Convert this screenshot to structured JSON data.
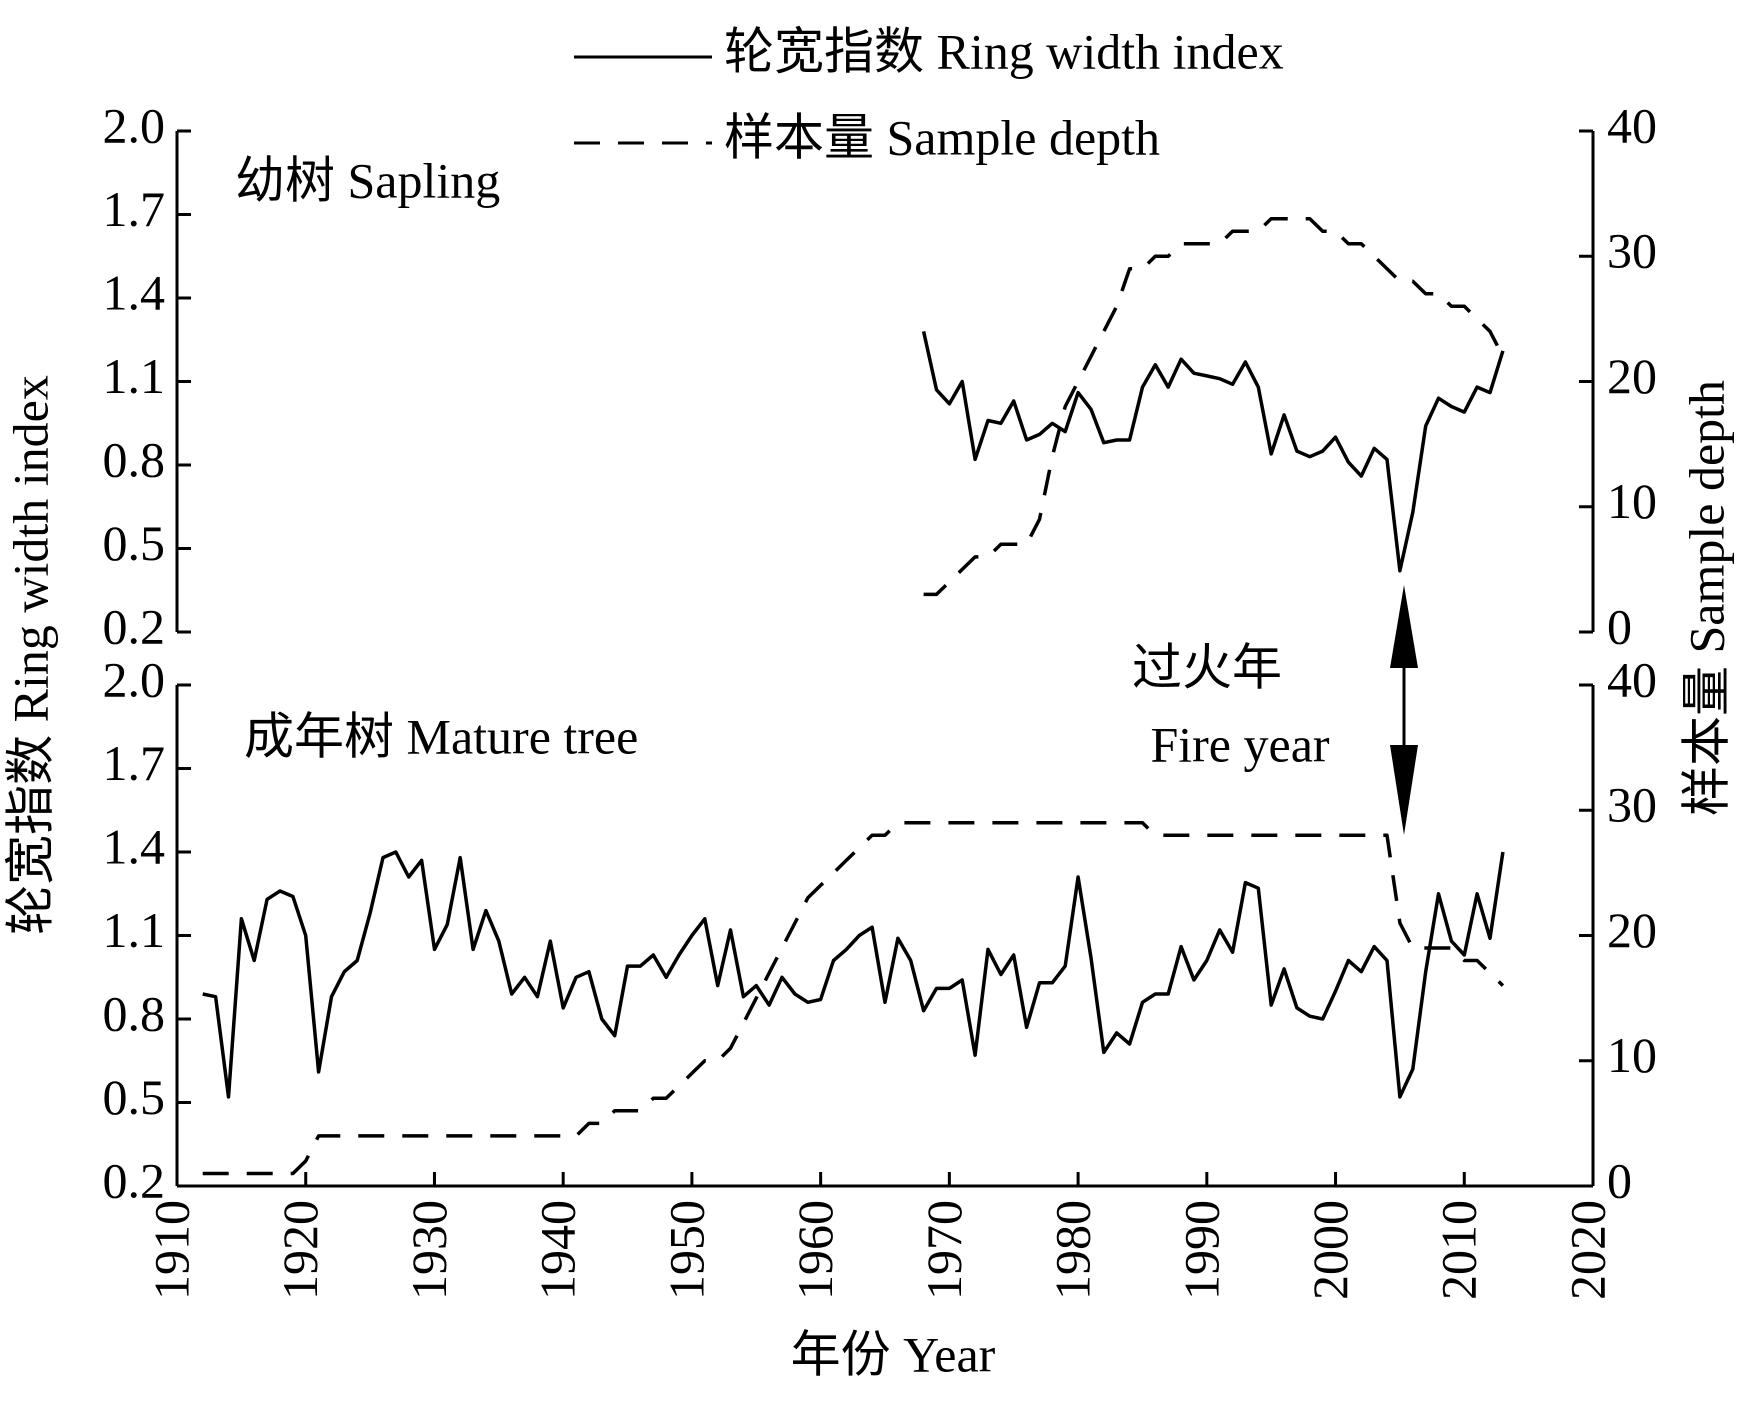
{
  "chart_data": [
    {
      "type": "line",
      "annotation": "幼树 Sapling",
      "ylabel": "轮宽指数 Ring width index",
      "y2label": "样本量 Sample depth",
      "x": [
        1968,
        1969,
        1970,
        1971,
        1972,
        1973,
        1974,
        1975,
        1976,
        1977,
        1978,
        1979,
        1980,
        1981,
        1982,
        1983,
        1984,
        1985,
        1986,
        1987,
        1988,
        1989,
        1990,
        1991,
        1992,
        1993,
        1994,
        1995,
        1996,
        1997,
        1998,
        1999,
        2000,
        2001,
        2002,
        2003,
        2004,
        2005,
        2006,
        2007,
        2008,
        2009,
        2010,
        2011,
        2012,
        2013
      ],
      "series": [
        {
          "name": "轮宽指数 Ring width index",
          "color": "#000000",
          "linestyle": "solid",
          "values": [
            1.28,
            1.07,
            1.02,
            1.1,
            0.82,
            0.96,
            0.95,
            1.03,
            0.89,
            0.91,
            0.95,
            0.92,
            1.06,
            1.0,
            0.88,
            0.89,
            0.89,
            1.08,
            1.16,
            1.08,
            1.18,
            1.13,
            1.12,
            1.11,
            1.09,
            1.17,
            1.08,
            0.84,
            0.98,
            0.85,
            0.83,
            0.85,
            0.9,
            0.81,
            0.76,
            0.86,
            0.82,
            0.42,
            0.63,
            0.94,
            1.04,
            1.01,
            0.99,
            1.08,
            1.06,
            1.21
          ]
        },
        {
          "name": "样本量 Sample depth",
          "color": "#000000",
          "linestyle": "dashed",
          "axis": "y2",
          "values": [
            3,
            3,
            4,
            5,
            6,
            6,
            7,
            7,
            7,
            9,
            14,
            18,
            20,
            22,
            24,
            26,
            29,
            29,
            30,
            30,
            31,
            31,
            31,
            31,
            32,
            32,
            32,
            33,
            33,
            33,
            33,
            32,
            32,
            31,
            31,
            30,
            29,
            28,
            28,
            27,
            27,
            26,
            26,
            25,
            24,
            22
          ]
        }
      ],
      "xlim": [
        1910,
        2020
      ],
      "ylim": [
        0.2,
        2.0
      ],
      "yticks": [
        0.2,
        0.5,
        0.8,
        1.1,
        1.4,
        1.7,
        {
          "value": 2,
          "label": "2.0"
        }
      ],
      "y2lim": [
        0,
        40
      ],
      "y2ticks": [
        0,
        10,
        20,
        30,
        40
      ]
    },
    {
      "type": "line",
      "annotation": "成年树 Mature tree",
      "fire_label": [
        "过火年",
        "Fire year"
      ],
      "xlabel": "年份 Year",
      "x": [
        1912,
        1913,
        1914,
        1915,
        1916,
        1917,
        1918,
        1919,
        1920,
        1921,
        1922,
        1923,
        1924,
        1925,
        1926,
        1927,
        1928,
        1929,
        1930,
        1931,
        1932,
        1933,
        1934,
        1935,
        1936,
        1937,
        1938,
        1939,
        1940,
        1941,
        1942,
        1943,
        1944,
        1945,
        1946,
        1947,
        1948,
        1949,
        1950,
        1951,
        1952,
        1953,
        1954,
        1955,
        1956,
        1957,
        1958,
        1959,
        1960,
        1961,
        1962,
        1963,
        1964,
        1965,
        1966,
        1967,
        1968,
        1969,
        1970,
        1971,
        1972,
        1973,
        1974,
        1975,
        1976,
        1977,
        1978,
        1979,
        1980,
        1981,
        1982,
        1983,
        1984,
        1985,
        1986,
        1987,
        1988,
        1989,
        1990,
        1991,
        1992,
        1993,
        1994,
        1995,
        1996,
        1997,
        1998,
        1999,
        2000,
        2001,
        2002,
        2003,
        2004,
        2005,
        2006,
        2007,
        2008,
        2009,
        2010,
        2011,
        2012,
        2013
      ],
      "series": [
        {
          "name": "轮宽指数 Ring width index",
          "color": "#000000",
          "linestyle": "solid",
          "values": [
            0.89,
            0.88,
            0.52,
            1.16,
            1.01,
            1.23,
            1.26,
            1.24,
            1.1,
            0.61,
            0.88,
            0.97,
            1.01,
            1.18,
            1.38,
            1.4,
            1.31,
            1.37,
            1.05,
            1.14,
            1.38,
            1.05,
            1.19,
            1.08,
            0.89,
            0.95,
            0.88,
            1.08,
            0.84,
            0.95,
            0.97,
            0.8,
            0.74,
            0.99,
            0.99,
            1.03,
            0.95,
            1.03,
            1.1,
            1.16,
            0.92,
            1.12,
            0.88,
            0.92,
            0.85,
            0.95,
            0.89,
            0.86,
            0.87,
            1.01,
            1.05,
            1.1,
            1.13,
            0.86,
            1.09,
            1.01,
            0.83,
            0.91,
            0.91,
            0.94,
            0.67,
            1.05,
            0.96,
            1.03,
            0.77,
            0.93,
            0.93,
            0.99,
            1.31,
            1.02,
            0.68,
            0.75,
            0.71,
            0.86,
            0.89,
            0.89,
            1.06,
            0.94,
            1.01,
            1.12,
            1.04,
            1.29,
            1.27,
            0.85,
            0.98,
            0.84,
            0.81,
            0.8,
            0.9,
            1.01,
            0.97,
            1.06,
            1.01,
            0.52,
            0.62,
            0.97,
            1.25,
            1.08,
            1.03,
            1.25,
            1.09,
            1.4
          ]
        },
        {
          "name": "样本量 Sample depth",
          "color": "#000000",
          "linestyle": "dashed",
          "axis": "y2",
          "values": [
            1,
            1,
            1,
            1,
            1,
            1,
            1,
            1,
            2,
            4,
            4,
            4,
            4,
            4,
            4,
            4,
            4,
            4,
            4,
            4,
            4,
            4,
            4,
            4,
            4,
            4,
            4,
            4,
            4,
            4,
            5,
            5,
            6,
            6,
            6,
            7,
            7,
            8,
            9,
            10,
            10,
            11,
            13,
            15,
            17,
            19,
            21,
            23,
            24,
            25,
            26,
            27,
            28,
            28,
            29,
            29,
            29,
            29,
            29,
            29,
            29,
            29,
            29,
            29,
            29,
            29,
            29,
            29,
            29,
            29,
            29,
            29,
            29,
            29,
            28,
            28,
            28,
            28,
            28,
            28,
            28,
            28,
            28,
            28,
            28,
            28,
            28,
            28,
            28,
            28,
            28,
            28,
            28,
            21,
            19,
            19,
            19,
            19,
            18,
            18,
            17,
            16
          ]
        }
      ],
      "xlim": [
        1910,
        2020
      ],
      "xticks": [
        1910,
        1920,
        1930,
        1940,
        1950,
        1960,
        1970,
        1980,
        1990,
        2000,
        2010,
        2020
      ],
      "ylim": [
        0.2,
        2.0
      ],
      "yticks": [
        0.2,
        0.5,
        0.8,
        1.1,
        1.4,
        1.7,
        {
          "value": 2,
          "label": "2.0"
        }
      ],
      "y2lim": [
        0,
        40
      ],
      "y2ticks": [
        0,
        10,
        20,
        30,
        40
      ]
    }
  ]
}
